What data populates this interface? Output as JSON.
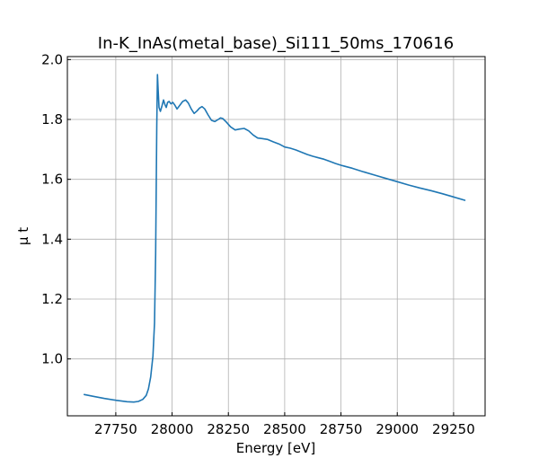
{
  "chart_data": {
    "type": "line",
    "title": "In-K_InAs(metal_base)_Si111_50ms_170616",
    "xlabel": "Energy [eV]",
    "ylabel": "μ t",
    "xlim": [
      27535,
      29390
    ],
    "ylim": [
      0.81,
      2.01
    ],
    "xticks": [
      27750,
      28000,
      28250,
      28500,
      28750,
      29000,
      29250
    ],
    "yticks": [
      1.0,
      1.2,
      1.4,
      1.6,
      1.8,
      2.0
    ],
    "xtick_labels": [
      "27750",
      "28000",
      "28250",
      "28500",
      "28750",
      "29000",
      "29250"
    ],
    "ytick_labels": [
      "1.0",
      "1.2",
      "1.4",
      "1.6",
      "1.8",
      "2.0"
    ],
    "grid": true,
    "line_color": "#1f77b4",
    "series": [
      {
        "name": "",
        "x": [
          27610,
          27650,
          27700,
          27750,
          27800,
          27830,
          27850,
          27870,
          27885,
          27895,
          27905,
          27915,
          27922,
          27927,
          27932,
          27935,
          27938,
          27942,
          27948,
          27955,
          27962,
          27968,
          27974,
          27980,
          27987,
          27995,
          28003,
          28012,
          28022,
          28035,
          28047,
          28060,
          28072,
          28085,
          28098,
          28110,
          28122,
          28133,
          28145,
          28160,
          28175,
          28190,
          28205,
          28215,
          28225,
          28240,
          28260,
          28280,
          28300,
          28320,
          28340,
          28360,
          28380,
          28400,
          28425,
          28450,
          28475,
          28500,
          28525,
          28550,
          28580,
          28600,
          28625,
          28650,
          28675,
          28700,
          28725,
          28750,
          28775,
          28800,
          28850,
          28900,
          28950,
          29000,
          29050,
          29100,
          29150,
          29200,
          29250,
          29300
        ],
        "y": [
          0.881,
          0.875,
          0.868,
          0.862,
          0.857,
          0.856,
          0.858,
          0.865,
          0.878,
          0.9,
          0.94,
          1.01,
          1.12,
          1.35,
          1.78,
          1.95,
          1.9,
          1.84,
          1.827,
          1.845,
          1.865,
          1.85,
          1.84,
          1.857,
          1.86,
          1.852,
          1.857,
          1.848,
          1.835,
          1.848,
          1.86,
          1.865,
          1.855,
          1.835,
          1.82,
          1.828,
          1.838,
          1.843,
          1.835,
          1.815,
          1.797,
          1.793,
          1.8,
          1.805,
          1.803,
          1.792,
          1.775,
          1.765,
          1.768,
          1.77,
          1.762,
          1.748,
          1.738,
          1.736,
          1.733,
          1.725,
          1.718,
          1.708,
          1.704,
          1.698,
          1.689,
          1.683,
          1.677,
          1.672,
          1.667,
          1.66,
          1.653,
          1.647,
          1.642,
          1.637,
          1.625,
          1.614,
          1.603,
          1.592,
          1.581,
          1.571,
          1.562,
          1.552,
          1.541,
          1.53
        ]
      }
    ]
  }
}
